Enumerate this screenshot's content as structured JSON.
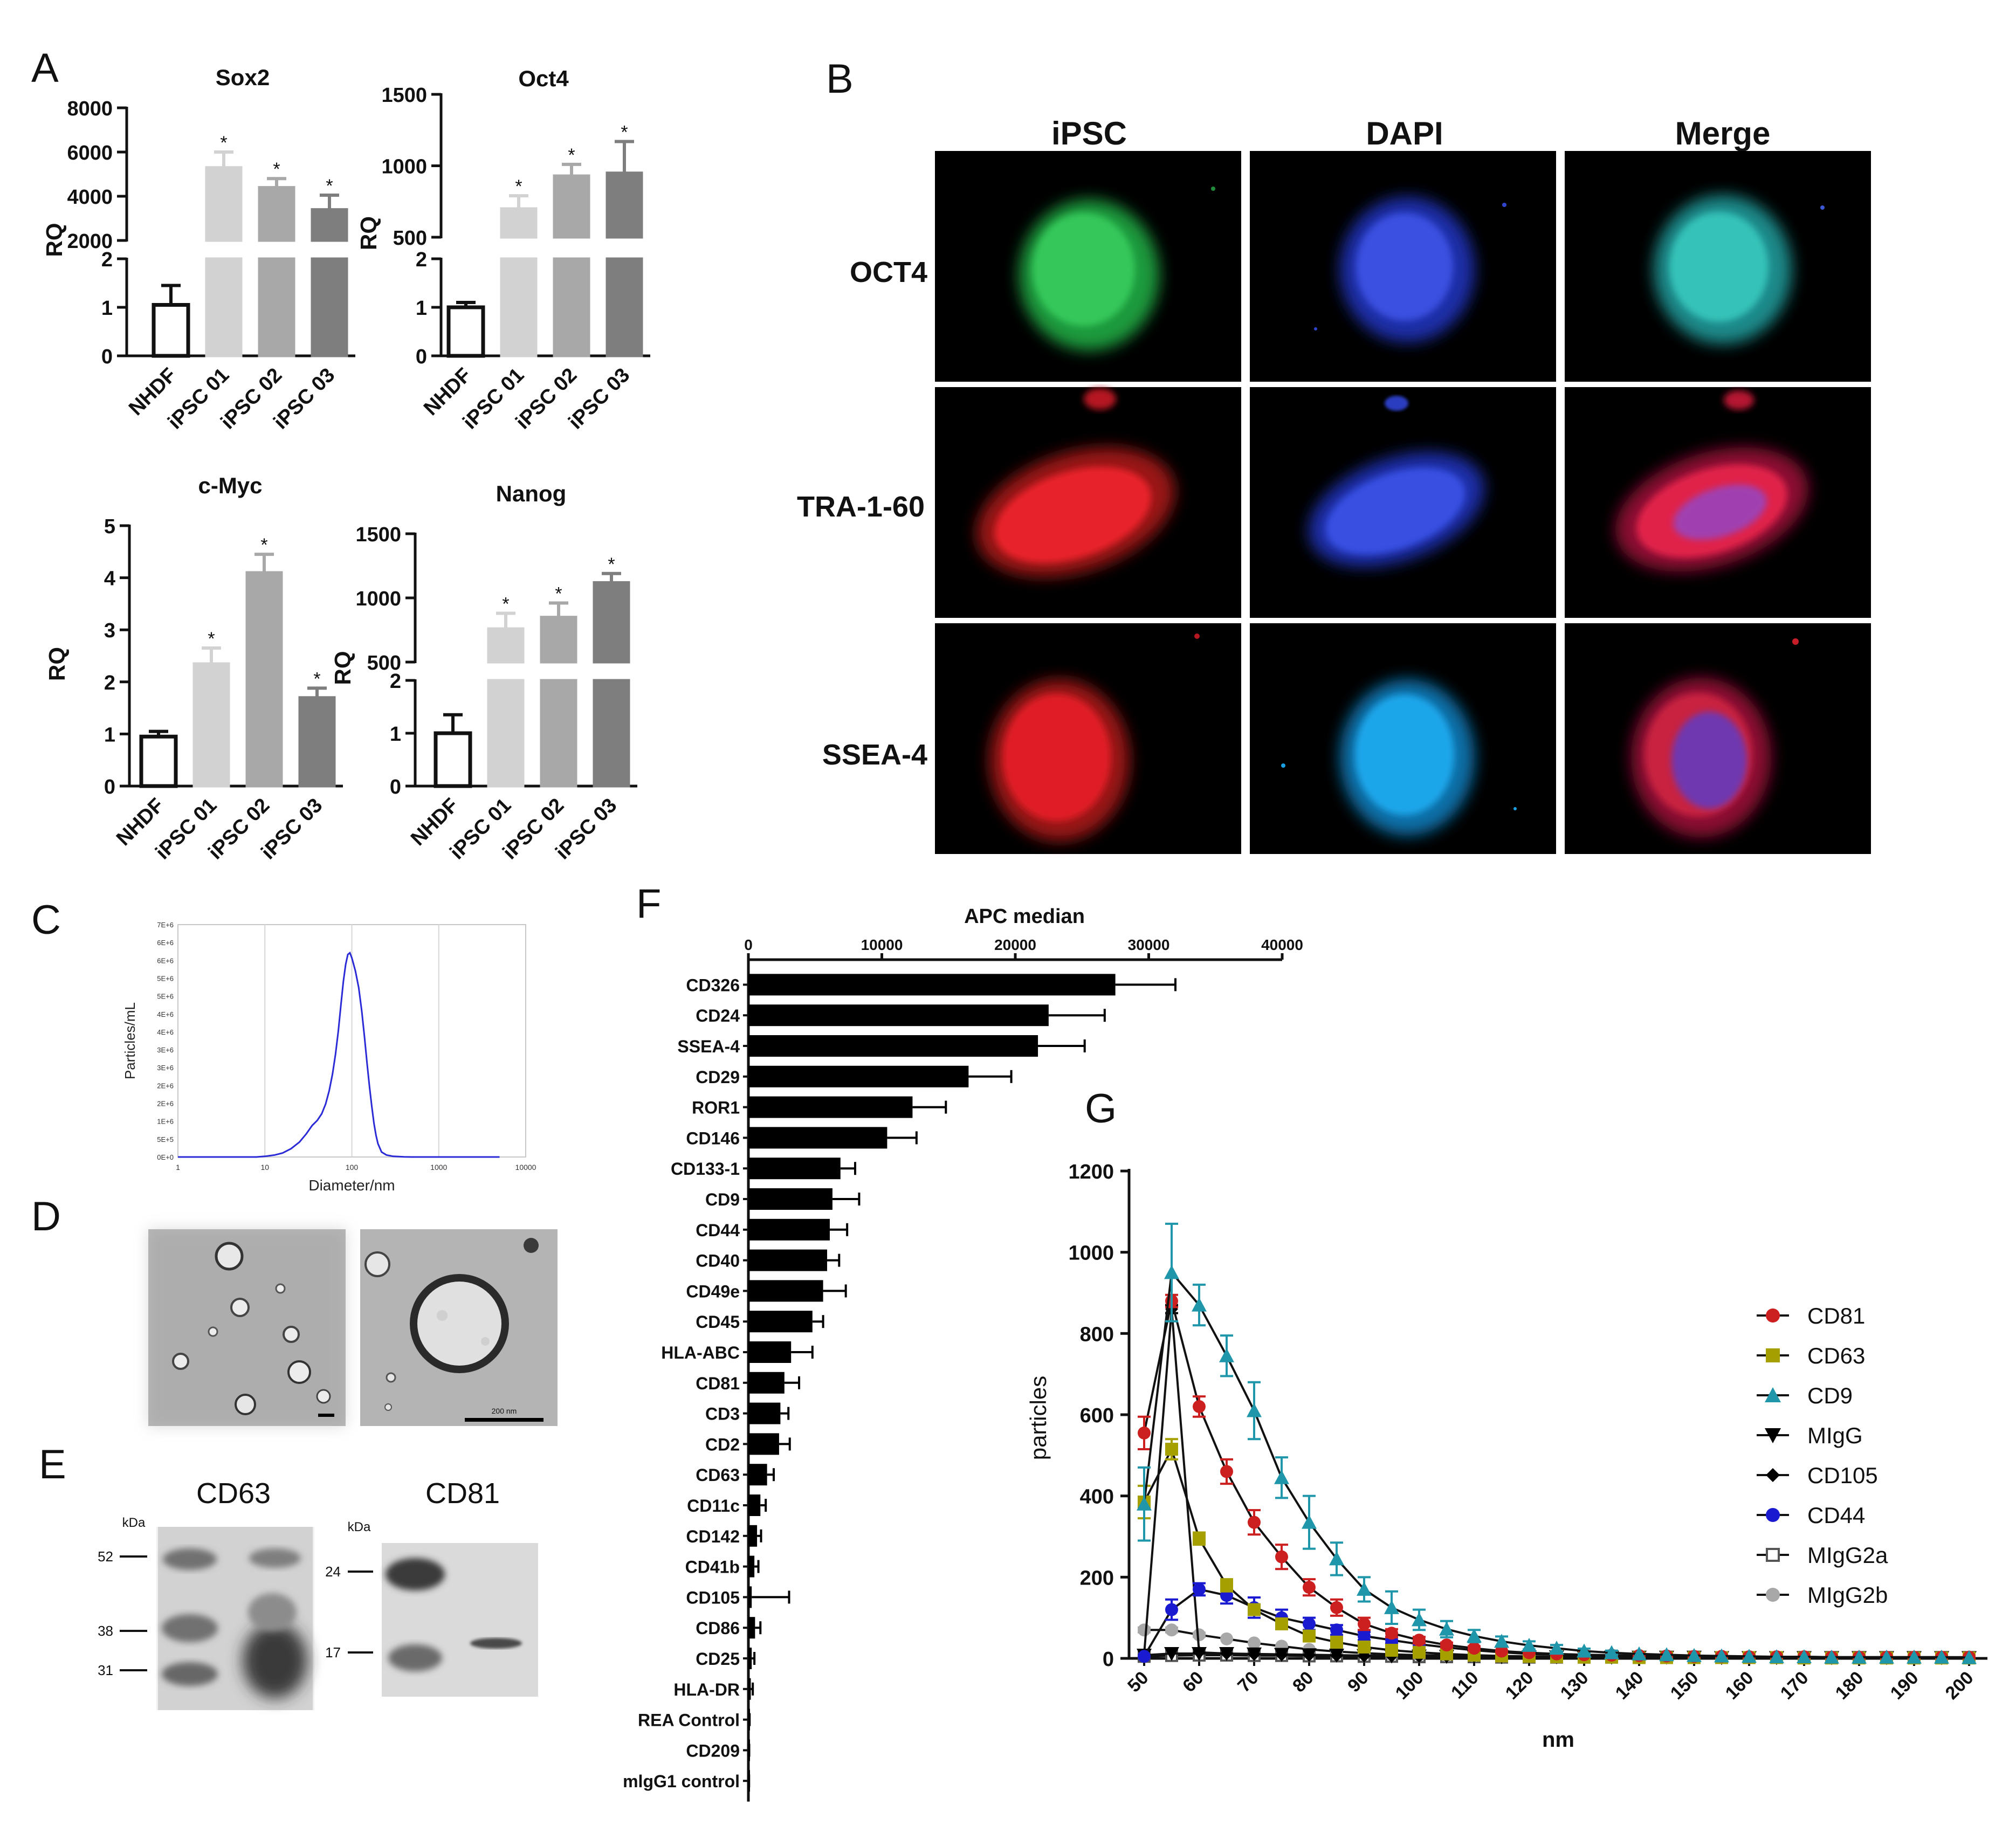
{
  "panels": {
    "A": "A",
    "B": "B",
    "C": "C",
    "D": "D",
    "E": "E",
    "F": "F",
    "G": "G"
  },
  "panel_A": {
    "y_label": "RQ",
    "categories": [
      "NHDF",
      "iPSC 01",
      "iPSC 02",
      "iPSC 03"
    ],
    "colors": [
      "#ffffff",
      "#d2d2d2",
      "#a8a8a8",
      "#7e7e7e"
    ],
    "significance_mark": "*"
  },
  "panel_B": {
    "column_labels": [
      "iPSC",
      "DAPI",
      "Merge"
    ],
    "row_labels": [
      "OCT4",
      "TRA-1-60",
      "SSEA-4"
    ],
    "stain_colors": {
      "OCT4": "#22b24c",
      "TRA-1-60": "#e51d24",
      "SSEA-4": "#e51d24",
      "DAPI": "#2b43d6",
      "DAPI_SSEA": "#1aa1e6",
      "Merge_OCT4": "#2bb8b0"
    }
  },
  "panel_D": {
    "scale_bar_label": "200 nm"
  },
  "panel_E": {
    "blots": [
      {
        "title": "CD63",
        "unit": "kDa",
        "markers": [
          "52",
          "38",
          "31"
        ]
      },
      {
        "title": "CD81",
        "unit": "kDa",
        "markers": [
          "24",
          "17"
        ]
      }
    ]
  },
  "chart_data": [
    {
      "id": "A-Sox2",
      "type": "bar",
      "title": "Sox2",
      "ylabel": "RQ",
      "categories": [
        "NHDF",
        "iPSC 01",
        "iPSC 02",
        "iPSC 03"
      ],
      "values": [
        1.05,
        5300,
        4400,
        3400
      ],
      "errors": [
        0.4,
        700,
        400,
        650
      ],
      "significant": [
        false,
        true,
        true,
        true
      ],
      "broken_axis": {
        "lower": [
          0,
          2
        ],
        "lower_ticks": [
          "0",
          "1",
          "2"
        ],
        "upper": [
          2000,
          8000
        ],
        "upper_ticks": [
          "2000",
          "4000",
          "6000",
          "8000"
        ]
      }
    },
    {
      "id": "A-Oct4",
      "type": "bar",
      "title": "Oct4",
      "ylabel": "RQ",
      "categories": [
        "NHDF",
        "iPSC 01",
        "iPSC 02",
        "iPSC 03"
      ],
      "values": [
        1.0,
        700,
        930,
        950
      ],
      "errors": [
        0.1,
        90,
        80,
        220
      ],
      "significant": [
        false,
        true,
        true,
        true
      ],
      "broken_axis": {
        "lower": [
          0,
          2
        ],
        "lower_ticks": [
          "0",
          "1",
          "2"
        ],
        "upper": [
          500,
          1500
        ],
        "upper_ticks": [
          "500",
          "1000",
          "1500"
        ]
      }
    },
    {
      "id": "A-cMyc",
      "type": "bar",
      "title": "c-Myc",
      "ylabel": "RQ",
      "categories": [
        "NHDF",
        "iPSC 01",
        "iPSC 02",
        "iPSC 03"
      ],
      "values": [
        0.95,
        2.35,
        4.1,
        1.7
      ],
      "errors": [
        0.1,
        0.3,
        0.35,
        0.18
      ],
      "significant": [
        false,
        true,
        true,
        true
      ],
      "ylim": [
        0,
        5
      ],
      "yticks": [
        "0",
        "1",
        "2",
        "3",
        "4",
        "5"
      ]
    },
    {
      "id": "A-Nanog",
      "type": "bar",
      "title": "Nanog",
      "ylabel": "RQ",
      "categories": [
        "NHDF",
        "iPSC 01",
        "iPSC 02",
        "iPSC 03"
      ],
      "values": [
        1.0,
        760,
        850,
        1120
      ],
      "errors": [
        0.35,
        120,
        110,
        70
      ],
      "significant": [
        false,
        true,
        true,
        true
      ],
      "broken_axis": {
        "lower": [
          0,
          2
        ],
        "lower_ticks": [
          "0",
          "1",
          "2"
        ],
        "upper": [
          500,
          1500
        ],
        "upper_ticks": [
          "500",
          "1000",
          "1500"
        ]
      }
    },
    {
      "id": "C",
      "type": "line",
      "xlabel": "Diameter/nm",
      "ylabel": "Particles/mL",
      "xscale": "log",
      "xlim": [
        1,
        10000
      ],
      "xticks": [
        "1",
        "10",
        "100",
        "1000",
        "10000"
      ],
      "ylim": [
        0,
        7000000
      ],
      "yticks": [
        "0E+0",
        "5E+5",
        "1E+6",
        "2E+6",
        "2E+6",
        "3E+6",
        "3E+6",
        "4E+6",
        "4E+6",
        "5E+6",
        "5E+6",
        "6E+6",
        "6E+6",
        "7E+6"
      ],
      "x": [
        8,
        10,
        13,
        16,
        20,
        25,
        30,
        35,
        40,
        45,
        50,
        55,
        60,
        65,
        70,
        75,
        80,
        85,
        90,
        95,
        100,
        105,
        110,
        120,
        130,
        140,
        150,
        160,
        170,
        180,
        190,
        200,
        220,
        250,
        300,
        400,
        500,
        700,
        1000,
        2000,
        5000
      ],
      "y": [
        0,
        20000,
        60000,
        120000,
        250000,
        450000,
        700000,
        950000,
        1100000,
        1300000,
        1600000,
        2000000,
        2500000,
        3100000,
        3800000,
        4600000,
        5300000,
        5800000,
        6100000,
        6150000,
        6000000,
        5800000,
        5600000,
        5100000,
        4400000,
        3600000,
        2800000,
        2100000,
        1500000,
        1000000,
        650000,
        400000,
        150000,
        60000,
        20000,
        5000,
        0,
        0,
        0,
        0,
        0
      ],
      "color": "#2a2ad6"
    },
    {
      "id": "F",
      "type": "bar",
      "orientation": "horizontal",
      "title": "APC median",
      "xlim": [
        0,
        40000
      ],
      "xticks": [
        "0",
        "10000",
        "20000",
        "30000",
        "40000"
      ],
      "categories": [
        "CD326",
        "CD24",
        "SSEA-4",
        "CD29",
        "ROR1",
        "CD146",
        "CD133-1",
        "CD9",
        "CD44",
        "CD40",
        "CD49e",
        "CD45",
        "HLA-ABC",
        "CD81",
        "CD3",
        "CD2",
        "CD63",
        "CD11c",
        "CD142",
        "CD41b",
        "CD105",
        "CD86",
        "CD25",
        "HLA-DR",
        "REA Control",
        "CD209",
        "mlgG1 control"
      ],
      "values": [
        27500,
        22500,
        21700,
        16500,
        12300,
        10400,
        6900,
        6300,
        6100,
        5900,
        5600,
        4800,
        3200,
        2700,
        2400,
        2300,
        1400,
        900,
        650,
        450,
        250,
        500,
        250,
        180,
        60,
        40,
        30
      ],
      "errors": [
        4500,
        4200,
        3500,
        3200,
        2500,
        2200,
        1100,
        2000,
        1300,
        900,
        1700,
        800,
        1600,
        1100,
        600,
        800,
        500,
        400,
        300,
        300,
        2800,
        400,
        200,
        150,
        30,
        20,
        20
      ],
      "color": "#000000"
    },
    {
      "id": "G",
      "type": "line",
      "xlabel": "nm",
      "ylabel": "particles",
      "xlim": [
        50,
        200
      ],
      "ylim": [
        0,
        1200
      ],
      "xticks": [
        "50",
        "60",
        "70",
        "80",
        "90",
        "100",
        "110",
        "120",
        "130",
        "140",
        "150",
        "160",
        "170",
        "180",
        "190",
        "200"
      ],
      "yticks": [
        "0",
        "200",
        "400",
        "600",
        "800",
        "1000",
        "1200"
      ],
      "x": [
        50,
        55,
        60,
        65,
        70,
        75,
        80,
        85,
        90,
        95,
        100,
        105,
        110,
        115,
        120,
        125,
        130,
        135,
        140,
        145,
        150,
        155,
        160,
        165,
        170,
        175,
        180,
        185,
        190,
        195,
        200
      ],
      "series": [
        {
          "name": "CD81",
          "color": "#cc1f1f",
          "marker": "circle",
          "values": [
            555,
            880,
            620,
            460,
            335,
            250,
            175,
            125,
            85,
            62,
            45,
            33,
            25,
            18,
            14,
            11,
            9,
            8,
            7,
            6,
            5,
            5,
            4,
            4,
            4,
            3,
            3,
            3,
            3,
            3,
            3
          ],
          "errors": [
            40,
            15,
            25,
            30,
            30,
            30,
            20,
            20,
            15,
            10,
            8,
            6,
            5,
            4,
            3,
            2,
            2,
            2,
            2,
            1,
            1,
            1,
            1,
            1,
            1,
            1,
            1,
            1,
            1,
            1,
            1
          ]
        },
        {
          "name": "CD63",
          "color": "#a5a000",
          "marker": "square",
          "values": [
            385,
            515,
            295,
            180,
            120,
            85,
            55,
            40,
            28,
            20,
            15,
            11,
            8,
            6,
            5,
            4,
            3,
            3,
            2,
            2,
            2,
            2,
            2,
            2,
            1,
            1,
            1,
            1,
            1,
            1,
            1
          ],
          "errors": [
            40,
            25,
            15,
            15,
            12,
            10,
            8,
            6,
            5,
            4,
            3,
            3,
            2,
            2,
            1,
            1,
            1,
            1,
            1,
            1,
            1,
            1,
            1,
            1,
            1,
            1,
            1,
            1,
            1,
            1,
            1
          ]
        },
        {
          "name": "CD9",
          "color": "#1f96aa",
          "marker": "triangle",
          "values": [
            380,
            950,
            870,
            745,
            610,
            445,
            335,
            245,
            170,
            125,
            95,
            72,
            55,
            42,
            32,
            25,
            18,
            14,
            11,
            9,
            7,
            6,
            5,
            4,
            4,
            3,
            3,
            3,
            3,
            3,
            2
          ],
          "errors": [
            90,
            120,
            50,
            50,
            70,
            50,
            65,
            40,
            30,
            40,
            25,
            20,
            15,
            12,
            10,
            8,
            6,
            5,
            4,
            3,
            3,
            2,
            2,
            2,
            2,
            1,
            1,
            1,
            1,
            1,
            1
          ]
        },
        {
          "name": "MIgG",
          "color": "#000000",
          "marker": "triangle-down",
          "values": [
            8,
            12,
            12,
            12,
            11,
            10,
            9,
            8,
            7,
            6,
            6,
            5,
            5,
            4,
            4,
            4,
            3,
            3,
            3,
            3,
            3,
            2,
            2,
            2,
            2,
            2,
            2,
            2,
            2,
            2,
            2
          ],
          "errors": [
            3,
            4,
            4,
            4,
            3,
            3,
            3,
            3,
            2,
            2,
            2,
            2,
            2,
            2,
            1,
            1,
            1,
            1,
            1,
            1,
            1,
            1,
            1,
            1,
            1,
            1,
            1,
            1,
            1,
            1,
            1
          ]
        },
        {
          "name": "CD105",
          "color": "#000000",
          "marker": "diamond",
          "values": [
            10,
            860,
            15,
            12,
            10,
            9,
            8,
            7,
            6,
            6,
            5,
            5,
            4,
            4,
            4,
            3,
            3,
            3,
            3,
            2,
            2,
            2,
            2,
            2,
            2,
            2,
            2,
            2,
            2,
            2,
            2
          ],
          "errors": [
            3,
            10,
            4,
            3,
            3,
            3,
            2,
            2,
            2,
            2,
            2,
            2,
            1,
            1,
            1,
            1,
            1,
            1,
            1,
            1,
            1,
            1,
            1,
            1,
            1,
            1,
            1,
            1,
            1,
            1,
            1
          ]
        },
        {
          "name": "CD44",
          "color": "#1a1ad0",
          "marker": "circle",
          "values": [
            5,
            120,
            170,
            155,
            125,
            100,
            85,
            70,
            55,
            45,
            35,
            27,
            20,
            15,
            11,
            9,
            7,
            6,
            5,
            4,
            4,
            3,
            3,
            3,
            3,
            3,
            2,
            2,
            2,
            2,
            2
          ],
          "errors": [
            3,
            25,
            15,
            20,
            25,
            20,
            15,
            12,
            10,
            8,
            6,
            5,
            4,
            3,
            3,
            2,
            2,
            2,
            1,
            1,
            1,
            1,
            1,
            1,
            1,
            1,
            1,
            1,
            1,
            1,
            1
          ]
        },
        {
          "name": "MIgG2a",
          "color": "#555555",
          "marker": "square-open",
          "values": [
            5,
            7,
            8,
            8,
            7,
            7,
            6,
            6,
            5,
            5,
            4,
            4,
            4,
            3,
            3,
            3,
            3,
            3,
            2,
            2,
            2,
            2,
            2,
            2,
            2,
            2,
            2,
            2,
            2,
            2,
            2
          ],
          "errors": [
            2,
            2,
            2,
            2,
            2,
            2,
            2,
            2,
            1,
            1,
            1,
            1,
            1,
            1,
            1,
            1,
            1,
            1,
            1,
            1,
            1,
            1,
            1,
            1,
            1,
            1,
            1,
            1,
            1,
            1,
            1
          ]
        },
        {
          "name": "MIgG2b",
          "color": "#a8a8a8",
          "marker": "circle",
          "values": [
            70,
            70,
            58,
            48,
            38,
            30,
            22,
            17,
            13,
            10,
            8,
            7,
            6,
            5,
            4,
            4,
            3,
            3,
            3,
            3,
            2,
            2,
            2,
            2,
            2,
            2,
            2,
            2,
            2,
            2,
            2
          ],
          "errors": [
            6,
            6,
            5,
            4,
            4,
            3,
            3,
            2,
            2,
            2,
            1,
            1,
            1,
            1,
            1,
            1,
            1,
            1,
            1,
            1,
            1,
            1,
            1,
            1,
            1,
            1,
            1,
            1,
            1,
            1,
            1
          ]
        }
      ]
    }
  ]
}
